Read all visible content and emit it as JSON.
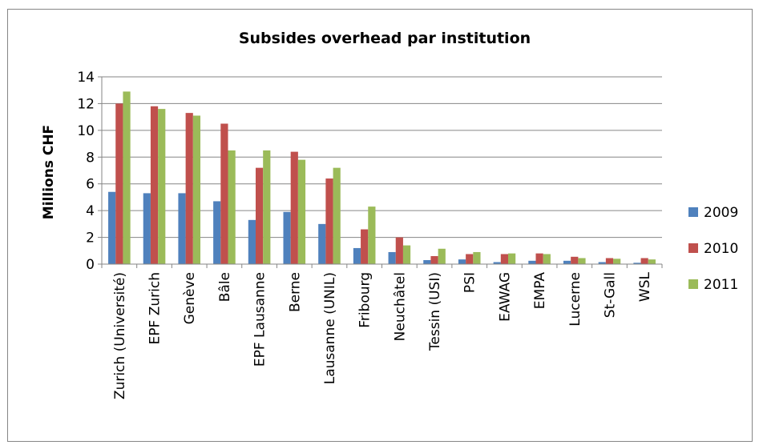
{
  "chart_data": {
    "type": "bar",
    "title": "Subsides overhead par institution",
    "xlabel": "",
    "ylabel": "Millions CHF",
    "ylim": [
      0,
      14
    ],
    "yticks": [
      0,
      2,
      4,
      6,
      8,
      10,
      12,
      14
    ],
    "grid": true,
    "legend_position": "right",
    "categories": [
      "Zurich (Université)",
      "EPF Zurich",
      "Genève",
      "Bâle",
      "EPF Lausanne",
      "Berne",
      "Lausanne (UNIL)",
      "Fribourg",
      "Neuchâtel",
      "Tessin (USI)",
      "PSI",
      "EAWAG",
      "EMPA",
      "Lucerne",
      "St-Gall",
      "WSL"
    ],
    "series": [
      {
        "name": "2009",
        "color": "#4f81bd",
        "values": [
          5.4,
          5.3,
          5.3,
          4.7,
          3.3,
          3.9,
          3.0,
          1.2,
          0.9,
          0.3,
          0.35,
          0.15,
          0.25,
          0.25,
          0.15,
          0.1
        ]
      },
      {
        "name": "2010",
        "color": "#c0504d",
        "values": [
          12.0,
          11.8,
          11.3,
          10.5,
          7.2,
          8.4,
          6.4,
          2.6,
          2.0,
          0.6,
          0.75,
          0.75,
          0.8,
          0.55,
          0.45,
          0.45
        ]
      },
      {
        "name": "2011",
        "color": "#9bbb59",
        "values": [
          12.9,
          11.6,
          11.1,
          8.5,
          8.5,
          7.8,
          7.2,
          4.3,
          1.4,
          1.15,
          0.9,
          0.8,
          0.75,
          0.45,
          0.4,
          0.35
        ]
      }
    ]
  }
}
